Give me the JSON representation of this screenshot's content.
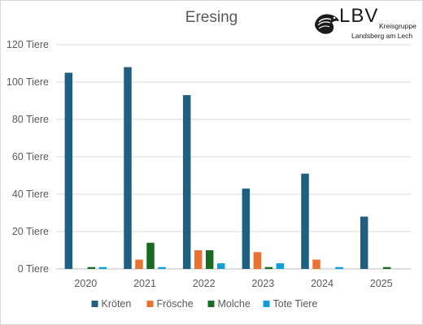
{
  "logo": {
    "name": "LBV",
    "line1": "Kreisgruppe",
    "line2": "Landsberg am Lech"
  },
  "chart_data": {
    "type": "bar",
    "title": "Eresing",
    "xlabel": "",
    "ylabel": "",
    "unit": "Tiere",
    "ylim": [
      0,
      120
    ],
    "yticks": [
      0,
      20,
      40,
      60,
      80,
      100,
      120
    ],
    "ytick_labels": [
      "0 Tiere",
      "20 Tiere",
      "40 Tiere",
      "60 Tiere",
      "80 Tiere",
      "100 Tiere",
      "120 Tiere"
    ],
    "grid": true,
    "legend_position": "bottom",
    "categories": [
      "2020",
      "2021",
      "2022",
      "2023",
      "2024",
      "2025"
    ],
    "series": [
      {
        "name": "Kröten",
        "color": "#1f5f7f",
        "values": [
          105,
          108,
          93,
          43,
          51,
          28
        ]
      },
      {
        "name": "Frösche",
        "color": "#e97132",
        "values": [
          0,
          5,
          10,
          9,
          5,
          0
        ]
      },
      {
        "name": "Molche",
        "color": "#196b24",
        "values": [
          1,
          14,
          10,
          1,
          0,
          1
        ]
      },
      {
        "name": "Tote Tiere",
        "color": "#0f9ed5",
        "values": [
          1,
          1,
          3,
          3,
          1,
          0
        ]
      }
    ]
  }
}
